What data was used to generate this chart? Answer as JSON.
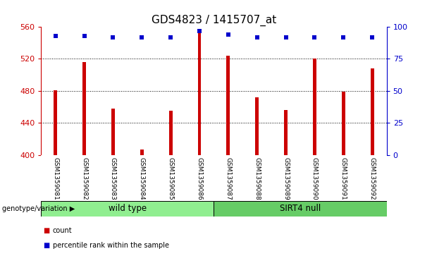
{
  "title": "GDS4823 / 1415707_at",
  "samples": [
    "GSM1359081",
    "GSM1359082",
    "GSM1359083",
    "GSM1359084",
    "GSM1359085",
    "GSM1359086",
    "GSM1359087",
    "GSM1359088",
    "GSM1359089",
    "GSM1359090",
    "GSM1359091",
    "GSM1359092"
  ],
  "counts": [
    481,
    516,
    458,
    407,
    455,
    555,
    524,
    472,
    456,
    520,
    479,
    508
  ],
  "percentile_ranks": [
    93,
    93,
    92,
    92,
    92,
    97,
    94,
    92,
    92,
    92,
    92,
    92
  ],
  "groups": [
    {
      "label": "wild type",
      "start": 0,
      "end": 6,
      "color": "#90EE90"
    },
    {
      "label": "SIRT4 null",
      "start": 6,
      "end": 12,
      "color": "#66CC66"
    }
  ],
  "bar_color": "#CC0000",
  "dot_color": "#0000CC",
  "ylim_left": [
    400,
    560
  ],
  "ylim_right": [
    0,
    100
  ],
  "yticks_left": [
    400,
    440,
    480,
    520,
    560
  ],
  "yticks_right": [
    0,
    25,
    50,
    75,
    100
  ],
  "grid_values": [
    440,
    480,
    520
  ],
  "left_axis_color": "#CC0000",
  "right_axis_color": "#0000CC",
  "title_color": "#000000",
  "title_fontsize": 11,
  "tick_label_fontsize": 6.5,
  "genotype_label": "genotype/variation",
  "legend_count_label": "count",
  "legend_percentile_label": "percentile rank within the sample",
  "background_color": "#ffffff",
  "label_area_color": "#C8C8C8",
  "group_label_fontsize": 8.5,
  "bar_width": 0.12
}
